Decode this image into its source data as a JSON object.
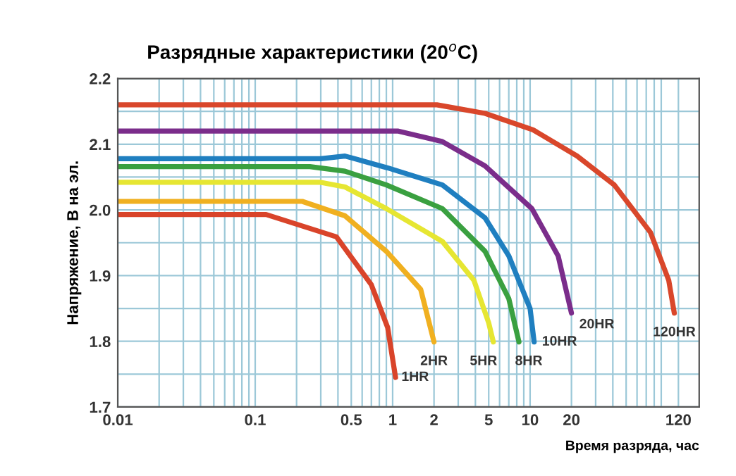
{
  "chart_data": {
    "type": "line",
    "title": "Разрядные характеристики (20$^{o}$C)",
    "xlabel": "Время разряда, час",
    "ylabel": "Напряжение, В на эл.",
    "log": "x",
    "grid": true,
    "legend": false,
    "marker": "none",
    "line_style": "solid",
    "xlim": [
      0.01,
      170
    ],
    "ylim": [
      1.7,
      2.2
    ],
    "xticks": [
      0.01,
      {
        "value": 0.02,
        "label": null
      },
      {
        "value": 0.03,
        "label": null
      },
      {
        "value": 0.04,
        "label": null
      },
      {
        "value": 0.05,
        "label": null
      },
      {
        "value": 0.06,
        "label": null
      },
      {
        "value": 0.07,
        "label": null
      },
      {
        "value": 0.08,
        "label": null
      },
      {
        "value": 0.09,
        "label": null
      },
      0.1,
      {
        "value": 0.2,
        "label": null
      },
      {
        "value": 0.3,
        "label": null
      },
      {
        "value": 0.4,
        "label": null
      },
      0.5,
      {
        "value": 0.6,
        "label": null
      },
      {
        "value": 0.7,
        "label": null
      },
      {
        "value": 0.8,
        "label": null
      },
      {
        "value": 0.9,
        "label": null
      },
      1,
      2,
      {
        "value": 3,
        "label": null
      },
      {
        "value": 4,
        "label": null
      },
      5,
      {
        "value": 6,
        "label": null
      },
      {
        "value": 7,
        "label": null
      },
      {
        "value": 8,
        "label": null
      },
      {
        "value": 9,
        "label": null
      },
      10,
      20,
      {
        "value": 30,
        "label": null
      },
      {
        "value": 40,
        "label": null
      },
      {
        "value": 50,
        "label": null
      },
      {
        "value": 60,
        "label": null
      },
      {
        "value": 70,
        "label": null
      },
      {
        "value": 80,
        "label": null
      },
      {
        "value": 90,
        "label": null
      },
      120
    ],
    "yticks": [
      1.7,
      {
        "value": 1.75,
        "label": null
      },
      1.8,
      {
        "value": 1.85,
        "label": null
      },
      1.9,
      {
        "value": 1.95,
        "label": null
      },
      {
        "value": 2.0,
        "label": "2.0"
      },
      {
        "value": 2.05,
        "label": null
      },
      2.1,
      {
        "value": 2.15,
        "label": null
      },
      2.2
    ],
    "series": [
      {
        "name": "120HR",
        "color": "#d9472b",
        "x": [
          0.01,
          2.1,
          4.7,
          10.5,
          22,
          41,
          75,
          102,
          112
        ],
        "values": [
          2.16,
          2.16,
          2.147,
          2.122,
          2.082,
          2.038,
          1.966,
          1.893,
          1.843
        ]
      },
      {
        "name": "20HR",
        "color": "#7b2d8b",
        "x": [
          0.01,
          1.1,
          2.3,
          4.7,
          10.3,
          16,
          20
        ],
        "values": [
          2.12,
          2.12,
          2.104,
          2.067,
          2.002,
          1.93,
          1.843
        ]
      },
      {
        "name": "10HR",
        "color": "#1f7fc0",
        "x": [
          0.01,
          0.3,
          0.45,
          0.92,
          2.3,
          4.7,
          7,
          10,
          10.7
        ],
        "values": [
          2.078,
          2.078,
          2.082,
          2.064,
          2.038,
          1.988,
          1.93,
          1.85,
          1.799
        ]
      },
      {
        "name": "8HR",
        "color": "#3aa040",
        "x": [
          0.01,
          0.25,
          0.45,
          0.9,
          2.3,
          4.7,
          7,
          8.3
        ],
        "values": [
          2.066,
          2.066,
          2.059,
          2.038,
          2.002,
          1.937,
          1.865,
          1.799
        ]
      },
      {
        "name": "5HR",
        "color": "#e6e632",
        "x": [
          0.01,
          0.3,
          0.45,
          0.9,
          2.3,
          3.9,
          5,
          5.4
        ],
        "values": [
          2.042,
          2.042,
          2.035,
          2.002,
          1.952,
          1.893,
          1.828,
          1.799
        ]
      },
      {
        "name": "2HR",
        "color": "#f0b020",
        "x": [
          0.01,
          0.22,
          0.45,
          0.9,
          1.6,
          2.0
        ],
        "values": [
          2.013,
          2.013,
          1.991,
          1.937,
          1.879,
          1.799
        ]
      },
      {
        "name": "1HR",
        "color": "#d9442a",
        "x": [
          0.01,
          0.12,
          0.39,
          0.7,
          0.92,
          1.05
        ],
        "values": [
          1.993,
          1.993,
          1.959,
          1.886,
          1.821,
          1.745
        ]
      }
    ]
  }
}
